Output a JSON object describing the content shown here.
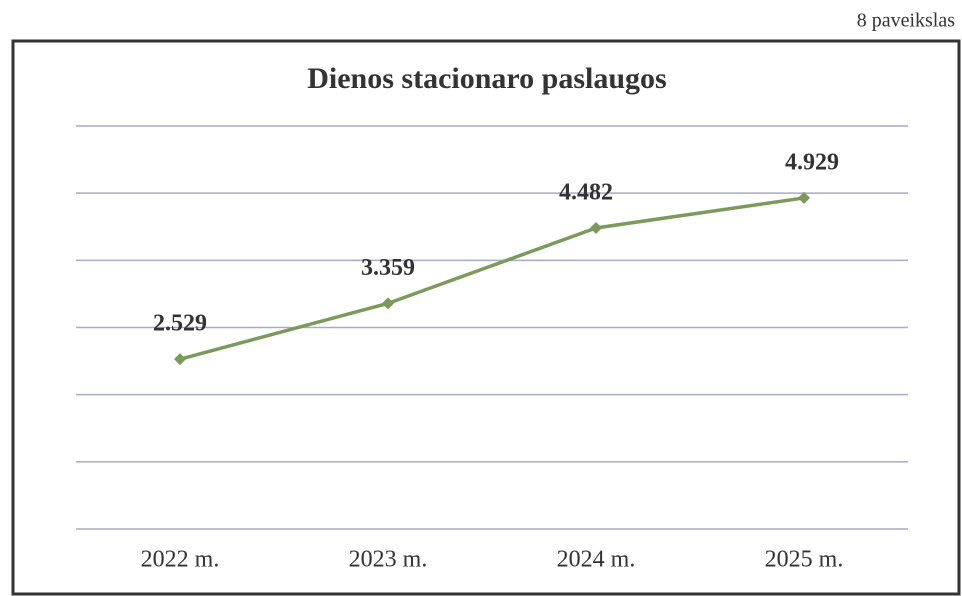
{
  "figure_label": "8 paveikslas",
  "chart_data": {
    "type": "line",
    "title": "Dienos stacionaro paslaugos",
    "categories": [
      "2022 m.",
      "2023 m.",
      "2024 m.",
      "2025 m."
    ],
    "values": [
      2.529,
      3.359,
      4.482,
      4.929
    ],
    "color": "#7b9a5c",
    "ylim": [
      0,
      6
    ],
    "yticks": [
      0,
      1,
      2,
      3,
      4,
      5,
      6
    ],
    "grid": true
  }
}
